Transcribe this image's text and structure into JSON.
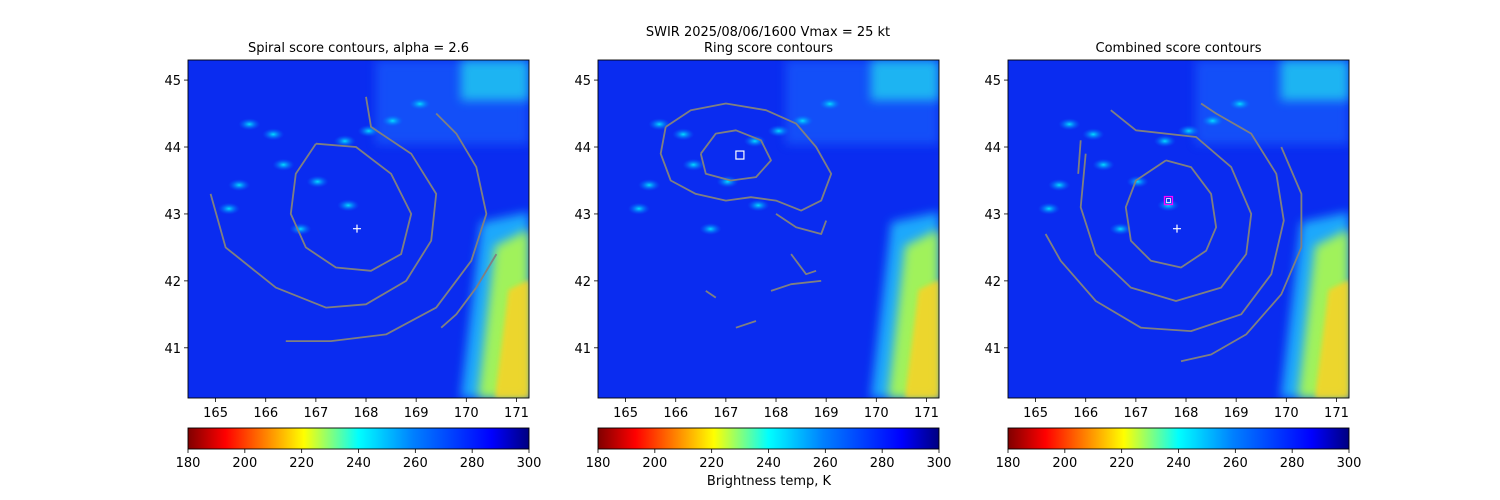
{
  "figure": {
    "suptitle_line1": "SWIR  2025/08/06/1600    Vmax = 25 kt",
    "colorbar_label": "Brightness temp, K"
  },
  "chart_data": [
    {
      "type": "heatmap",
      "title": "Spiral score contours, alpha =  2.6",
      "xlim": [
        164.45,
        171.25
      ],
      "ylim": [
        40.25,
        45.3
      ],
      "xticks": [
        165,
        166,
        167,
        168,
        169,
        170,
        171
      ],
      "yticks": [
        41,
        42,
        43,
        44,
        45
      ],
      "center_marker": {
        "lon": 167.82,
        "lat": 42.78
      },
      "contours": [
        [
          [
            167.0,
            44.05
          ],
          [
            167.8,
            44.0
          ],
          [
            168.5,
            43.6
          ],
          [
            168.9,
            43.0
          ],
          [
            168.7,
            42.4
          ],
          [
            168.1,
            42.15
          ],
          [
            167.4,
            42.2
          ],
          [
            166.8,
            42.5
          ],
          [
            166.5,
            43.0
          ],
          [
            166.6,
            43.6
          ],
          [
            167.0,
            44.05
          ]
        ],
        [
          [
            168.0,
            44.75
          ],
          [
            168.1,
            44.3
          ],
          [
            168.9,
            43.9
          ],
          [
            169.4,
            43.3
          ],
          [
            169.3,
            42.6
          ],
          [
            168.8,
            42.0
          ],
          [
            168.0,
            41.65
          ],
          [
            167.2,
            41.6
          ],
          [
            166.2,
            41.9
          ],
          [
            165.2,
            42.5
          ],
          [
            164.9,
            43.3
          ]
        ],
        [
          [
            169.4,
            44.5
          ],
          [
            169.8,
            44.2
          ],
          [
            170.2,
            43.7
          ],
          [
            170.4,
            43.0
          ],
          [
            170.1,
            42.3
          ],
          [
            169.4,
            41.6
          ],
          [
            168.4,
            41.2
          ],
          [
            167.3,
            41.1
          ],
          [
            166.4,
            41.1
          ]
        ],
        [
          [
            170.6,
            42.4
          ],
          [
            170.2,
            41.9
          ],
          [
            169.8,
            41.5
          ],
          [
            169.5,
            41.3
          ]
        ]
      ],
      "colorbar": {
        "min": 180,
        "max": 300,
        "ticks": [
          180,
          200,
          220,
          240,
          260,
          280,
          300
        ]
      }
    },
    {
      "type": "heatmap",
      "title": "Ring score contours",
      "xlim": [
        164.45,
        171.25
      ],
      "ylim": [
        40.25,
        45.3
      ],
      "xticks": [
        165,
        166,
        167,
        168,
        169,
        170,
        171
      ],
      "yticks": [
        41,
        42,
        43,
        44,
        45
      ],
      "center_marker": {
        "lon": 167.28,
        "lat": 43.88
      },
      "contours": [
        [
          [
            165.8,
            44.3
          ],
          [
            166.3,
            44.55
          ],
          [
            167.0,
            44.65
          ],
          [
            167.8,
            44.55
          ],
          [
            168.4,
            44.35
          ],
          [
            168.8,
            44.0
          ],
          [
            169.1,
            43.6
          ],
          [
            168.9,
            43.2
          ],
          [
            168.5,
            43.05
          ],
          [
            168.0,
            43.2
          ],
          [
            167.5,
            43.25
          ],
          [
            167.0,
            43.2
          ],
          [
            166.4,
            43.3
          ],
          [
            165.9,
            43.5
          ],
          [
            165.7,
            43.9
          ],
          [
            165.8,
            44.3
          ]
        ],
        [
          [
            166.5,
            43.9
          ],
          [
            166.8,
            44.2
          ],
          [
            167.2,
            44.25
          ],
          [
            167.7,
            44.1
          ],
          [
            167.9,
            43.8
          ],
          [
            167.6,
            43.55
          ],
          [
            167.1,
            43.5
          ],
          [
            166.6,
            43.6
          ],
          [
            166.5,
            43.9
          ]
        ],
        [
          [
            168.0,
            43.0
          ],
          [
            168.4,
            42.8
          ],
          [
            168.9,
            42.7
          ],
          [
            169.0,
            42.9
          ]
        ],
        [
          [
            168.3,
            42.4
          ],
          [
            168.6,
            42.1
          ],
          [
            168.8,
            42.15
          ]
        ],
        [
          [
            167.9,
            41.85
          ],
          [
            168.3,
            41.95
          ],
          [
            168.9,
            42.0
          ]
        ],
        [
          [
            166.6,
            41.85
          ],
          [
            166.8,
            41.75
          ]
        ],
        [
          [
            167.2,
            41.3
          ],
          [
            167.6,
            41.4
          ]
        ]
      ],
      "colorbar": {
        "min": 180,
        "max": 300,
        "ticks": [
          180,
          200,
          220,
          240,
          260,
          280,
          300
        ]
      }
    },
    {
      "type": "heatmap",
      "title": "Combined score contours",
      "xlim": [
        164.45,
        171.25
      ],
      "ylim": [
        40.25,
        45.3
      ],
      "xticks": [
        165,
        166,
        167,
        168,
        169,
        170,
        171
      ],
      "yticks": [
        41,
        42,
        43,
        44,
        45
      ],
      "center_marker": {
        "lon": 167.82,
        "lat": 42.78
      },
      "best_marker": {
        "lon": 167.65,
        "lat": 43.2
      },
      "contours": [
        [
          [
            167.6,
            43.8
          ],
          [
            168.1,
            43.7
          ],
          [
            168.5,
            43.3
          ],
          [
            168.6,
            42.8
          ],
          [
            168.4,
            42.45
          ],
          [
            167.9,
            42.2
          ],
          [
            167.3,
            42.3
          ],
          [
            166.9,
            42.6
          ],
          [
            166.8,
            43.1
          ],
          [
            167.0,
            43.5
          ],
          [
            167.6,
            43.8
          ]
        ],
        [
          [
            166.5,
            44.55
          ],
          [
            167.0,
            44.25
          ],
          [
            168.2,
            44.15
          ],
          [
            168.9,
            43.7
          ],
          [
            169.3,
            43.0
          ],
          [
            169.2,
            42.4
          ],
          [
            168.7,
            41.9
          ],
          [
            167.8,
            41.7
          ],
          [
            166.9,
            41.9
          ],
          [
            166.2,
            42.4
          ],
          [
            165.9,
            43.1
          ],
          [
            166.0,
            43.9
          ]
        ],
        [
          [
            168.3,
            44.65
          ],
          [
            168.6,
            44.5
          ],
          [
            169.3,
            44.2
          ],
          [
            169.8,
            43.6
          ],
          [
            169.95,
            42.9
          ],
          [
            169.7,
            42.1
          ],
          [
            169.1,
            41.5
          ],
          [
            168.1,
            41.25
          ],
          [
            167.1,
            41.3
          ],
          [
            166.2,
            41.7
          ],
          [
            165.5,
            42.3
          ],
          [
            165.2,
            42.7
          ]
        ],
        [
          [
            169.9,
            44.0
          ],
          [
            170.3,
            43.3
          ],
          [
            170.3,
            42.5
          ],
          [
            169.9,
            41.8
          ],
          [
            169.2,
            41.2
          ],
          [
            168.5,
            40.9
          ],
          [
            167.9,
            40.8
          ]
        ],
        [
          [
            165.9,
            44.1
          ],
          [
            165.85,
            43.6
          ]
        ]
      ],
      "colorbar": {
        "min": 180,
        "max": 300,
        "ticks": [
          180,
          200,
          220,
          240,
          260,
          280,
          300
        ]
      }
    }
  ]
}
